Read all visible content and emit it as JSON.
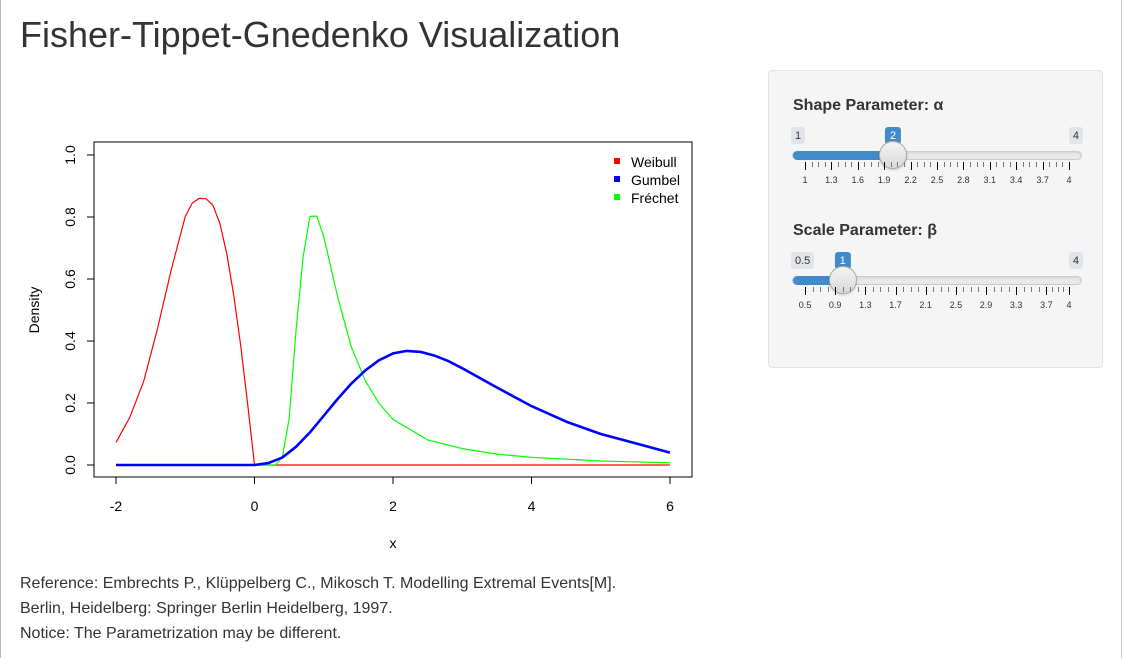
{
  "page": {
    "title": "Fisher-Tippet-Gnedenko Visualization"
  },
  "chart_data": {
    "type": "line",
    "xlabel": "x",
    "ylabel": "Density",
    "xlim": [
      -2,
      6
    ],
    "ylim": [
      0,
      1
    ],
    "xticks": [
      "-2",
      "0",
      "2",
      "4",
      "6"
    ],
    "yticks": [
      "0.0",
      "0.2",
      "0.4",
      "0.6",
      "0.8",
      "1.0"
    ],
    "grid": false,
    "legend_position": "top-right",
    "series": [
      {
        "name": "Weibull",
        "color": "#ff0000",
        "x": [
          -2.0,
          -1.8,
          -1.6,
          -1.4,
          -1.2,
          -1.0,
          -0.9,
          -0.8,
          -0.7,
          -0.6,
          -0.5,
          -0.4,
          -0.3,
          -0.2,
          -0.1,
          0.0,
          0.5,
          1.0,
          2.0,
          3.0,
          4.0,
          5.0,
          6.0
        ],
        "y": [
          0.073,
          0.154,
          0.27,
          0.441,
          0.632,
          0.802,
          0.845,
          0.86,
          0.859,
          0.838,
          0.779,
          0.681,
          0.548,
          0.385,
          0.198,
          0.0,
          0.0,
          0.0,
          0.0,
          0.0,
          0.0,
          0.0,
          0.0
        ]
      },
      {
        "name": "Gumbel",
        "color": "#0000ff",
        "x": [
          -2.0,
          -1.0,
          0.0,
          0.2,
          0.4,
          0.6,
          0.8,
          1.0,
          1.2,
          1.4,
          1.6,
          1.8,
          2.0,
          2.2,
          2.4,
          2.6,
          2.8,
          3.0,
          3.5,
          4.0,
          4.5,
          5.0,
          5.5,
          6.0
        ],
        "y": [
          0.0,
          0.0,
          0.0,
          0.006,
          0.024,
          0.059,
          0.105,
          0.159,
          0.213,
          0.263,
          0.305,
          0.338,
          0.36,
          0.368,
          0.365,
          0.353,
          0.335,
          0.312,
          0.25,
          0.19,
          0.14,
          0.1,
          0.07,
          0.04
        ]
      },
      {
        "name": "Fréchet",
        "color": "#00ff00",
        "x": [
          -2.0,
          0.0,
          0.3,
          0.4,
          0.5,
          0.6,
          0.7,
          0.8,
          0.9,
          1.0,
          1.1,
          1.2,
          1.4,
          1.6,
          1.8,
          2.0,
          2.5,
          3.0,
          3.5,
          4.0,
          5.0,
          6.0
        ],
        "y": [
          0.0,
          0.0,
          0.0,
          0.024,
          0.147,
          0.436,
          0.669,
          0.802,
          0.803,
          0.736,
          0.64,
          0.543,
          0.38,
          0.272,
          0.198,
          0.147,
          0.081,
          0.053,
          0.035,
          0.025,
          0.013,
          0.007
        ]
      }
    ]
  },
  "controls": {
    "shape": {
      "label": "Shape Parameter: α",
      "min_label": "1",
      "max_label": "4",
      "value_label": "2",
      "min": 1,
      "max": 4,
      "value": 2,
      "grid_labels": [
        "1",
        "1.3",
        "1.6",
        "1.9",
        "2.2",
        "2.5",
        "2.8",
        "3.1",
        "3.4",
        "3.7",
        "4"
      ]
    },
    "scale": {
      "label": "Scale Parameter: β",
      "min_label": "0.5",
      "max_label": "4",
      "value_label": "1",
      "min": 0.5,
      "max": 4,
      "value": 1,
      "grid_labels": [
        "0.5",
        "0.9",
        "1.3",
        "1.7",
        "2.1",
        "2.5",
        "2.9",
        "3.3",
        "3.7",
        "4"
      ]
    }
  },
  "reference": {
    "line1": "Reference:  Embrechts P., Klüppelberg C., Mikosch T. Modelling Extremal Events[M].",
    "line2": "Berlin, Heidelberg: Springer Berlin Heidelberg, 1997.",
    "line3": "Notice: The Parametrization may be different."
  }
}
